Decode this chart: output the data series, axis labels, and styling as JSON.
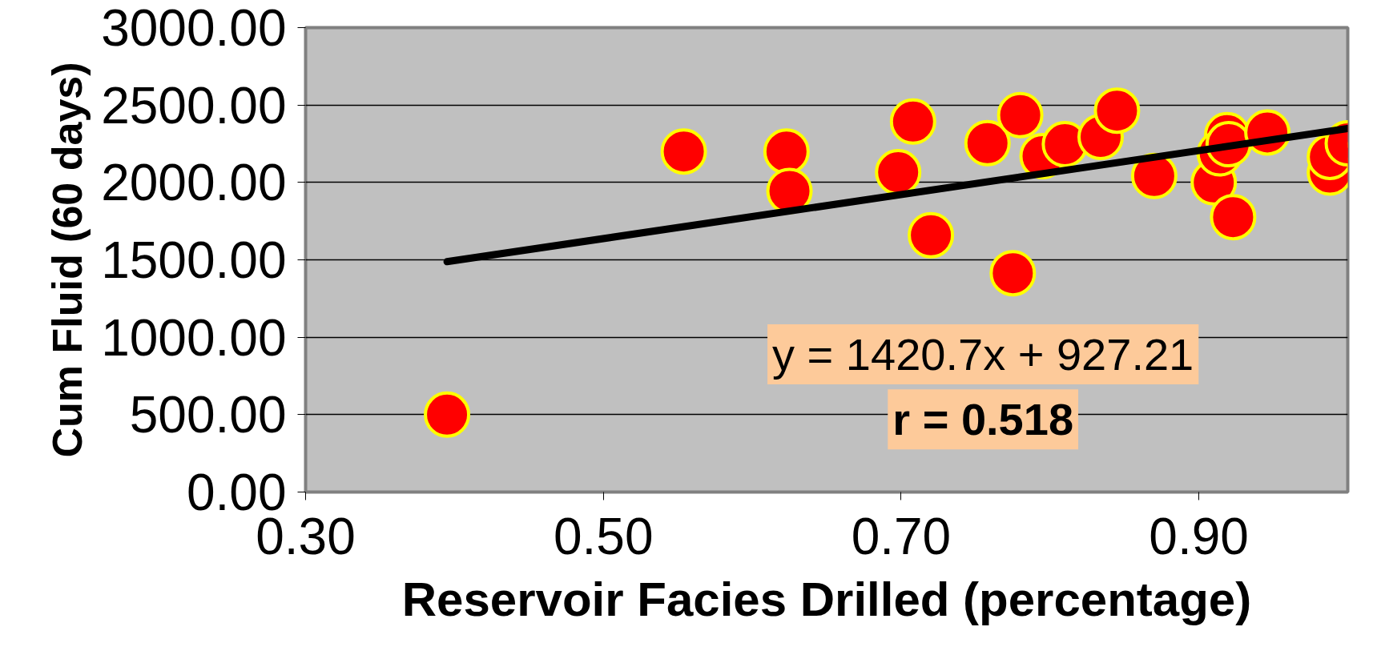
{
  "chart_data": {
    "type": "scatter",
    "xlabel": "Reservoir Facies Drilled (percentage)",
    "ylabel": "Cum Fluid (60 days)",
    "xlim": [
      0.3,
      1.0
    ],
    "ylim": [
      0,
      3000
    ],
    "xticks": [
      {
        "value": 0.3,
        "label": "0.30"
      },
      {
        "value": 0.5,
        "label": "0.50"
      },
      {
        "value": 0.7,
        "label": "0.70"
      },
      {
        "value": 0.9,
        "label": "0.90"
      }
    ],
    "yticks": [
      {
        "value": 0,
        "label": "0.00"
      },
      {
        "value": 500,
        "label": "500.00"
      },
      {
        "value": 1000,
        "label": "1000.00"
      },
      {
        "value": 1500,
        "label": "1500.00"
      },
      {
        "value": 2000,
        "label": "2000.00"
      },
      {
        "value": 2500,
        "label": "2500.00"
      },
      {
        "value": 3000,
        "label": "3000.00"
      }
    ],
    "grid": "y",
    "series": [
      {
        "marker": "circle",
        "color": "#ff0000",
        "x": [
          0.395,
          0.554,
          0.623,
          0.625,
          0.698,
          0.708,
          0.72,
          0.758,
          0.78,
          0.775,
          0.795,
          0.81,
          0.834,
          0.845,
          0.87,
          0.919,
          0.91,
          0.914,
          0.923,
          0.92,
          0.946,
          0.988,
          0.988,
          1.0
        ],
        "values": [
          500,
          2200,
          2200,
          1945,
          2066,
          2393,
          1659,
          2254,
          2435,
          1414,
          2170,
          2247,
          2294,
          2464,
          2042,
          2306,
          2000,
          2188,
          1776,
          2247,
          2323,
          2064,
          2165,
          2252
        ]
      },
      {
        "type": "line",
        "marker": "none",
        "color": "#000000",
        "x": [
          0.395,
          1.0
        ],
        "values": [
          1488,
          2348
        ]
      }
    ],
    "annotations": [
      "y = 1420.7x + 927.21",
      "r = 0.518"
    ]
  }
}
